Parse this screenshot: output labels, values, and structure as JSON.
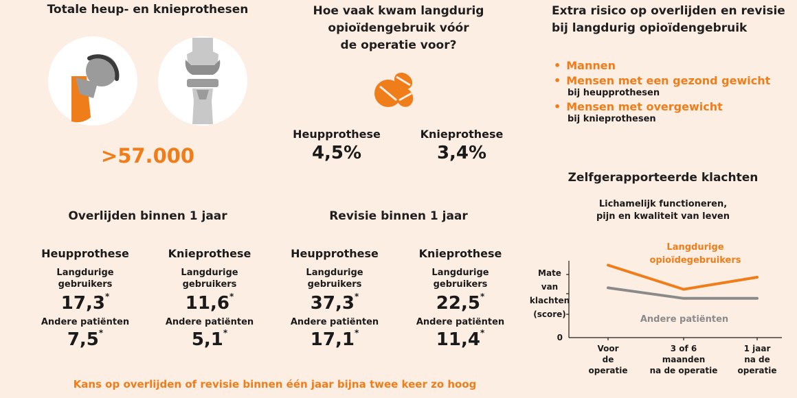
{
  "totals": {
    "title": "Totale heup- en knieprothesen",
    "value": ">57.000",
    "icons": [
      "hip-prosthesis-icon",
      "knee-prosthesis-icon"
    ]
  },
  "frequency": {
    "title_lines": [
      "Hoe vaak kwam langdurig",
      "opioïdengebruik vóór",
      "de operatie voor?"
    ],
    "icon": "pills-icon",
    "hip_label": "Heupprothese",
    "hip_value": "4,5%",
    "knee_label": "Knieprothese",
    "knee_value": "3,4%"
  },
  "risk": {
    "title_lines": [
      "Extra risico op overlijden en revisie",
      "bij langdurig opioïdengebruik"
    ],
    "items": [
      {
        "label": "Mannen",
        "sub": ""
      },
      {
        "label": "Mensen met een gezond gewicht",
        "sub": "bij heupprothesen"
      },
      {
        "label": "Mensen met overgewicht",
        "sub": "bij knieprothesen"
      }
    ]
  },
  "mortality": {
    "title": "Overlijden binnen 1 jaar",
    "hip": {
      "label": "Heupprothese",
      "long_label_lines": [
        "Langdurige",
        "gebruikers"
      ],
      "long_value": "17,3",
      "other_label": "Andere patiënten",
      "other_value": "7,5"
    },
    "knee": {
      "label": "Knieprothese",
      "long_label_lines": [
        "Langdurige",
        "gebruikers"
      ],
      "long_value": "11,6",
      "other_label": "Andere patiënten",
      "other_value": "5,1"
    }
  },
  "revision": {
    "title": "Revisie binnen 1 jaar",
    "hip": {
      "label": "Heupprothese",
      "long_label_lines": [
        "Langdurige",
        "gebruikers"
      ],
      "long_value": "37,3",
      "other_label": "Andere patiënten",
      "other_value": "17,1"
    },
    "knee": {
      "label": "Knieprothese",
      "long_label_lines": [
        "Langdurige",
        "gebruikers"
      ],
      "long_value": "22,5",
      "other_label": "Andere patiënten",
      "other_value": "11,4"
    }
  },
  "significance_mark": "*",
  "footnote": "Kans op overlijden of revisie binnen één jaar bijna twee keer zo hoog",
  "chart_data": {
    "type": "line",
    "title": "Zelfgerapporteerde klachten",
    "subtitle_lines": [
      "Lichamelijk functioneren,",
      "pijn en kwaliteit van leven"
    ],
    "ylabel_lines": [
      "Mate",
      "van",
      "klachten",
      "(score)"
    ],
    "y_zero_label": "0",
    "ylim": [
      0,
      5
    ],
    "categories": [
      [
        "Voor",
        "de",
        "operatie"
      ],
      [
        "3 of 6",
        "maanden",
        "na de operatie"
      ],
      [
        "1 jaar",
        "na de",
        "operatie"
      ]
    ],
    "series": [
      {
        "name_lines": [
          "Langdurige",
          "opioïdegebruikers"
        ],
        "values": [
          4.8,
          3.2,
          4.0
        ],
        "color": "#ef7d1a"
      },
      {
        "name_lines": [
          "Andere patiënten"
        ],
        "values": [
          3.3,
          2.6,
          2.6
        ],
        "color": "#8a8a8a"
      }
    ]
  },
  "colors": {
    "accent": "#ef7d1a",
    "background": "#fdeee4",
    "grey": "#8a8a8a",
    "implant_grey": "#9b9b9b"
  }
}
